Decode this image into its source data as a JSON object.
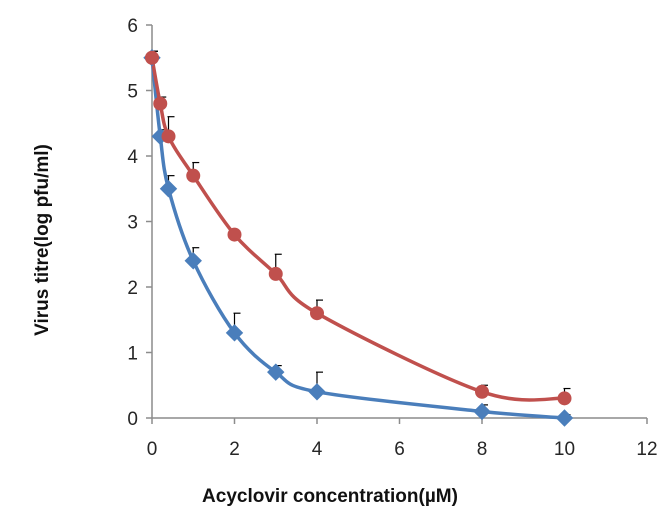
{
  "chart_data": {
    "type": "line",
    "title": "",
    "xlabel": "Acyclovir concentration(µM)",
    "ylabel": "Virus titre(log pfu/ml)",
    "xlim": [
      0,
      12
    ],
    "ylim": [
      0,
      6
    ],
    "xticks": [
      "0",
      "2",
      "4",
      "6",
      "8",
      "10",
      "12"
    ],
    "yticks": [
      "0",
      "1",
      "2",
      "3",
      "4",
      "5",
      "6"
    ],
    "grid": false,
    "legend": "none",
    "series": [
      {
        "color": "#4a7ebb",
        "marker": "diamond",
        "x": [
          0,
          0.2,
          0.4,
          1,
          2,
          3,
          4,
          8,
          10
        ],
        "y": [
          5.5,
          4.3,
          3.5,
          2.4,
          1.3,
          0.7,
          0.4,
          0.1,
          0.0
        ],
        "error_plus": [
          0.1,
          0.1,
          0.2,
          0.2,
          0.3,
          0.1,
          0.3,
          0.1,
          0.05
        ]
      },
      {
        "color": "#c0504d",
        "marker": "circle",
        "x": [
          0,
          0.2,
          0.4,
          1,
          2,
          3,
          4,
          8,
          10
        ],
        "y": [
          5.5,
          4.8,
          4.3,
          3.7,
          2.8,
          2.2,
          1.6,
          0.4,
          0.3
        ],
        "error_plus": [
          0.1,
          0.1,
          0.3,
          0.2,
          0.05,
          0.3,
          0.2,
          0.1,
          0.15
        ]
      }
    ]
  }
}
